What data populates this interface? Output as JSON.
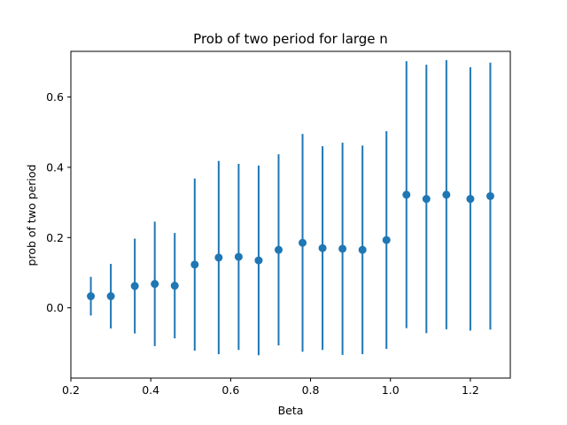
{
  "chart_data": {
    "type": "scatter",
    "title": "Prob of two period for large n",
    "xlabel": "Beta",
    "ylabel": "prob of two period",
    "xlim": [
      0.2,
      1.3
    ],
    "ylim": [
      -0.2,
      0.73
    ],
    "xticks": [
      0.2,
      0.4,
      0.6,
      0.8,
      1.0,
      1.2
    ],
    "xtick_labels": [
      "0.2",
      "0.4",
      "0.6",
      "0.8",
      "1.0",
      "1.2"
    ],
    "yticks": [
      0.0,
      0.2,
      0.4,
      0.6
    ],
    "ytick_labels": [
      "0.0",
      "0.2",
      "0.4",
      "0.6"
    ],
    "grid": false,
    "color": "#1f77b4",
    "series": [
      {
        "x": [
          0.25,
          0.3,
          0.36,
          0.41,
          0.46,
          0.51,
          0.57,
          0.62,
          0.67,
          0.72,
          0.78,
          0.83,
          0.88,
          0.93,
          0.99,
          1.04,
          1.09,
          1.14,
          1.2,
          1.25
        ],
        "y": [
          0.033,
          0.033,
          0.062,
          0.068,
          0.063,
          0.123,
          0.143,
          0.145,
          0.135,
          0.165,
          0.185,
          0.17,
          0.168,
          0.165,
          0.193,
          0.322,
          0.31,
          0.322,
          0.31,
          0.318
        ],
        "yerr": [
          0.055,
          0.092,
          0.135,
          0.177,
          0.15,
          0.245,
          0.275,
          0.265,
          0.27,
          0.272,
          0.31,
          0.29,
          0.302,
          0.297,
          0.31,
          0.38,
          0.382,
          0.383,
          0.375,
          0.38
        ]
      }
    ]
  }
}
